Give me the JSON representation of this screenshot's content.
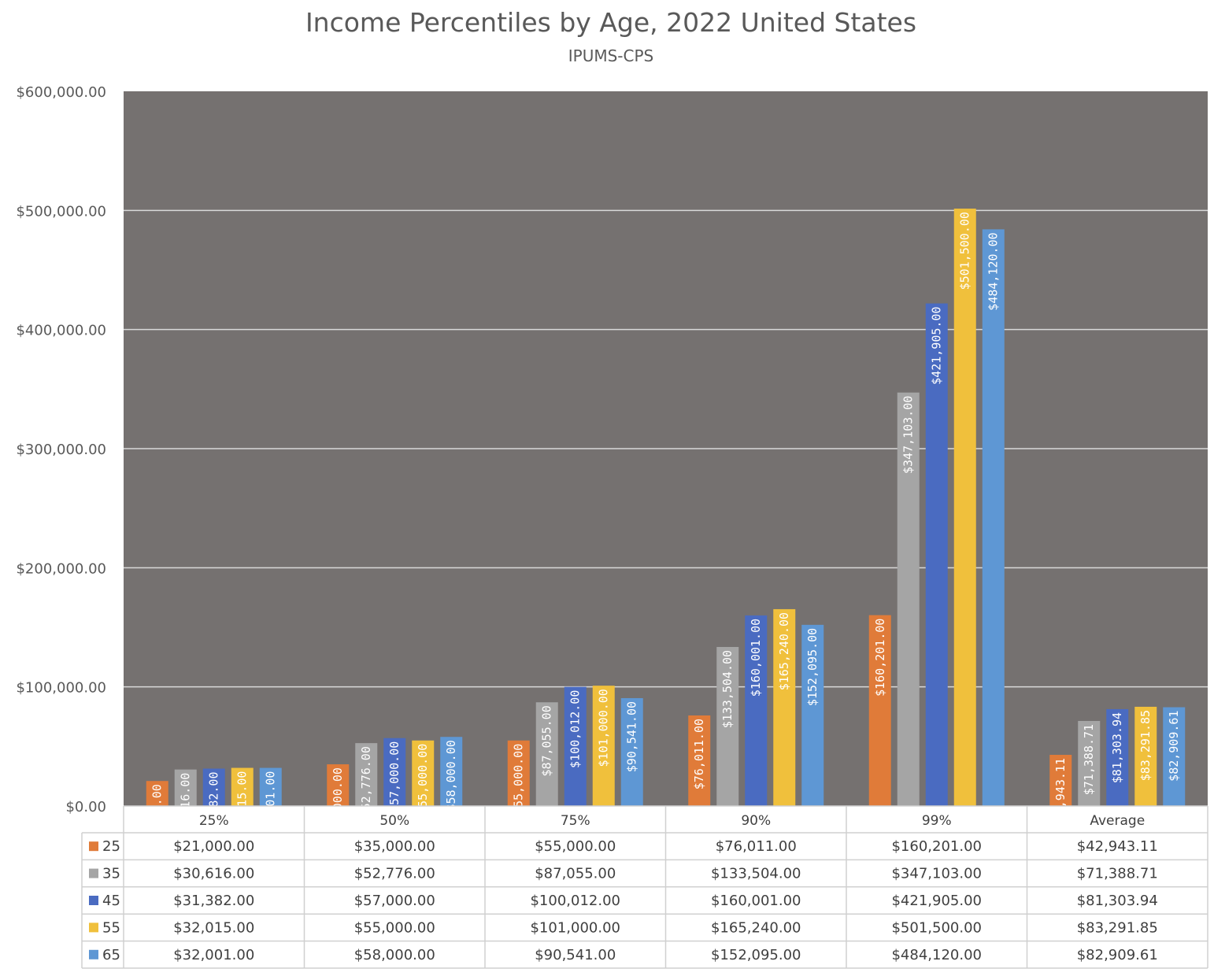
{
  "chart_data": {
    "type": "bar",
    "title": "Income Percentiles by Age, 2022 United States",
    "subtitle": "IPUMS-CPS",
    "categories": [
      "25%",
      "50%",
      "75%",
      "90%",
      "99%",
      "Average"
    ],
    "ylim": [
      0,
      600000
    ],
    "yticks": [
      "$0.00",
      "$100,000.00",
      "$200,000.00",
      "$300,000.00",
      "$400,000.00",
      "$500,000.00",
      "$600,000.00"
    ],
    "grid": true,
    "legend": "data table",
    "plot_background": "#757170",
    "series": [
      {
        "name": "25",
        "color": "#E07B39",
        "values": [
          21000,
          35000,
          55000,
          76011,
          160201,
          42943.11
        ],
        "labels": [
          "$21,000.00",
          "$35,000.00",
          "$55,000.00",
          "$76,011.00",
          "$160,201.00",
          "$42,943.11"
        ]
      },
      {
        "name": "35",
        "color": "#A5A5A5",
        "values": [
          30616,
          52776,
          87055,
          133504,
          347103,
          71388.71
        ],
        "labels": [
          "$30,616.00",
          "$52,776.00",
          "$87,055.00",
          "$133,504.00",
          "$347,103.00",
          "$71,388.71"
        ]
      },
      {
        "name": "45",
        "color": "#4A6BC1",
        "values": [
          31382,
          57000,
          100012,
          160001,
          421905,
          81303.94
        ],
        "labels": [
          "$31,382.00",
          "$57,000.00",
          "$100,012.00",
          "$160,001.00",
          "$421,905.00",
          "$81,303.94"
        ]
      },
      {
        "name": "55",
        "color": "#F0C03C",
        "values": [
          32015,
          55000,
          101000,
          165240,
          501500,
          83291.85
        ],
        "labels": [
          "$32,015.00",
          "$55,000.00",
          "$101,000.00",
          "$165,240.00",
          "$501,500.00",
          "$83,291.85"
        ]
      },
      {
        "name": "65",
        "color": "#5E97D4",
        "values": [
          32001,
          58000,
          90541,
          152095,
          484120,
          82909.61
        ],
        "labels": [
          "$32,001.00",
          "$58,000.00",
          "$90,541.00",
          "$152,095.00",
          "$484,120.00",
          "$82,909.61"
        ]
      }
    ]
  }
}
